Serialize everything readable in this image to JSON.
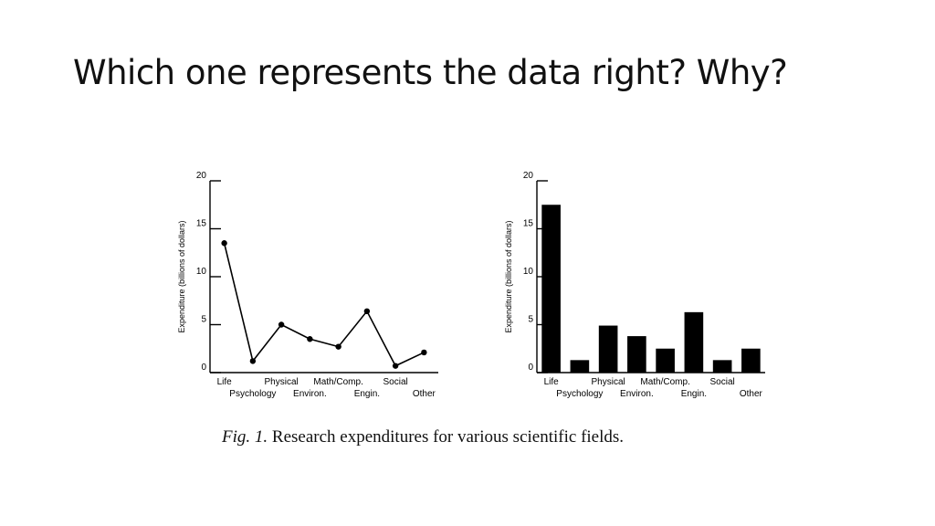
{
  "slide": {
    "title": "Which one represents the data right? Why?"
  },
  "caption": {
    "figure_number": "Fig. 1.",
    "text": " Research expenditures for various scientific fields."
  },
  "chart_data": [
    {
      "type": "line",
      "categories": [
        "Life",
        "Psychology",
        "Physical",
        "Environ.",
        "Math/Comp.",
        "Engin.",
        "Social",
        "Other"
      ],
      "values": [
        13.5,
        1.2,
        5,
        3.5,
        2.7,
        6.4,
        0.7,
        2.1
      ],
      "ylabel": "Expenditure (billions of dollars)",
      "ylim": [
        0,
        20
      ],
      "yticks": [
        0,
        5,
        10,
        15,
        20
      ],
      "grid": false
    },
    {
      "type": "bar",
      "categories": [
        "Life",
        "Psychology",
        "Physical",
        "Environ.",
        "Math/Comp.",
        "Engin.",
        "Social",
        "Other"
      ],
      "values": [
        17.5,
        1.3,
        4.9,
        3.8,
        2.5,
        6.3,
        1.3,
        2.5
      ],
      "ylabel": "Expenditure (billions of dollars)",
      "ylim": [
        0,
        20
      ],
      "yticks": [
        0,
        5,
        10,
        15,
        20
      ],
      "grid": false
    }
  ]
}
